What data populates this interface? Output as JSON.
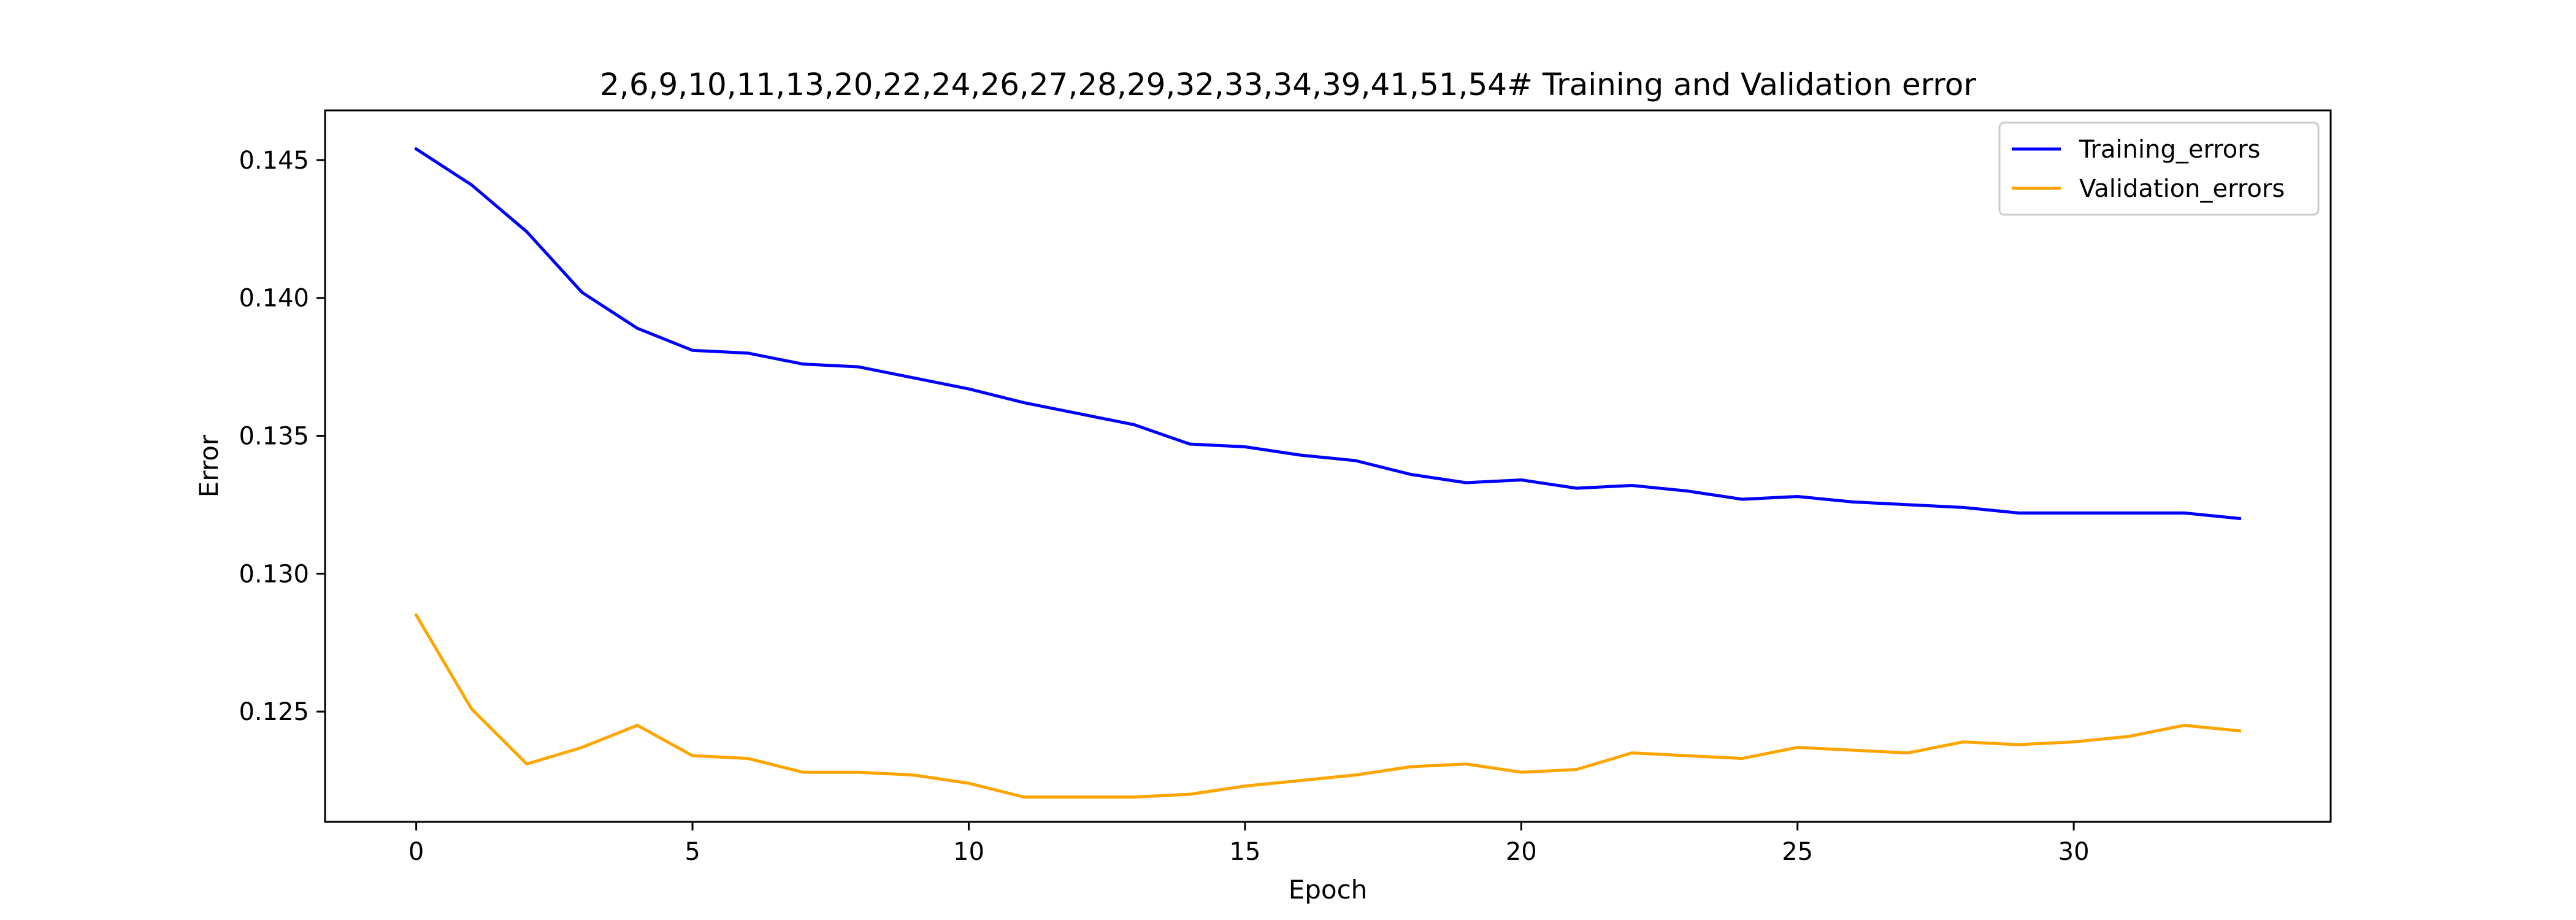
{
  "chart_data": {
    "type": "line",
    "title": "2,6,9,10,11,13,20,22,24,26,27,28,29,32,33,34,39,41,51,54# Training and Validation error",
    "xlabel": "Epoch",
    "ylabel": "Error",
    "xlim": [
      -1.65,
      34.65
    ],
    "ylim": [
      0.121,
      0.1468
    ],
    "xticks": [
      0,
      5,
      10,
      15,
      20,
      25,
      30
    ],
    "yticks": [
      0.125,
      0.13,
      0.135,
      0.14,
      0.145
    ],
    "ytick_labels": [
      "0.125",
      "0.130",
      "0.135",
      "0.140",
      "0.145"
    ],
    "grid": false,
    "legend_position": "top-right",
    "x": [
      0,
      1,
      2,
      3,
      4,
      5,
      6,
      7,
      8,
      9,
      10,
      11,
      12,
      13,
      14,
      15,
      16,
      17,
      18,
      19,
      20,
      21,
      22,
      23,
      24,
      25,
      26,
      27,
      28,
      29,
      30,
      31,
      32,
      33
    ],
    "series": [
      {
        "name": "Training_errors",
        "color": "#0000ff",
        "values": [
          0.1454,
          0.1441,
          0.1424,
          0.1402,
          0.1389,
          0.1381,
          0.138,
          0.1376,
          0.1375,
          0.1371,
          0.1367,
          0.1362,
          0.1358,
          0.1354,
          0.1347,
          0.1346,
          0.1343,
          0.1341,
          0.1336,
          0.1333,
          0.1334,
          0.1331,
          0.1332,
          0.133,
          0.1327,
          0.1328,
          0.1326,
          0.1325,
          0.1324,
          0.1322,
          0.1322,
          0.1322,
          0.1322,
          0.132
        ]
      },
      {
        "name": "Validation_errors",
        "color": "#ffa500",
        "values": [
          0.1285,
          0.1251,
          0.1231,
          0.1237,
          0.1245,
          0.1234,
          0.1233,
          0.1228,
          0.1228,
          0.1227,
          0.1224,
          0.1219,
          0.1219,
          0.1219,
          0.122,
          0.1223,
          0.1225,
          0.1227,
          0.123,
          0.1231,
          0.1228,
          0.1229,
          0.1235,
          0.1234,
          0.1233,
          0.1237,
          0.1236,
          0.1235,
          0.1239,
          0.1238,
          0.1239,
          0.1241,
          0.1245,
          0.1243
        ]
      }
    ]
  }
}
